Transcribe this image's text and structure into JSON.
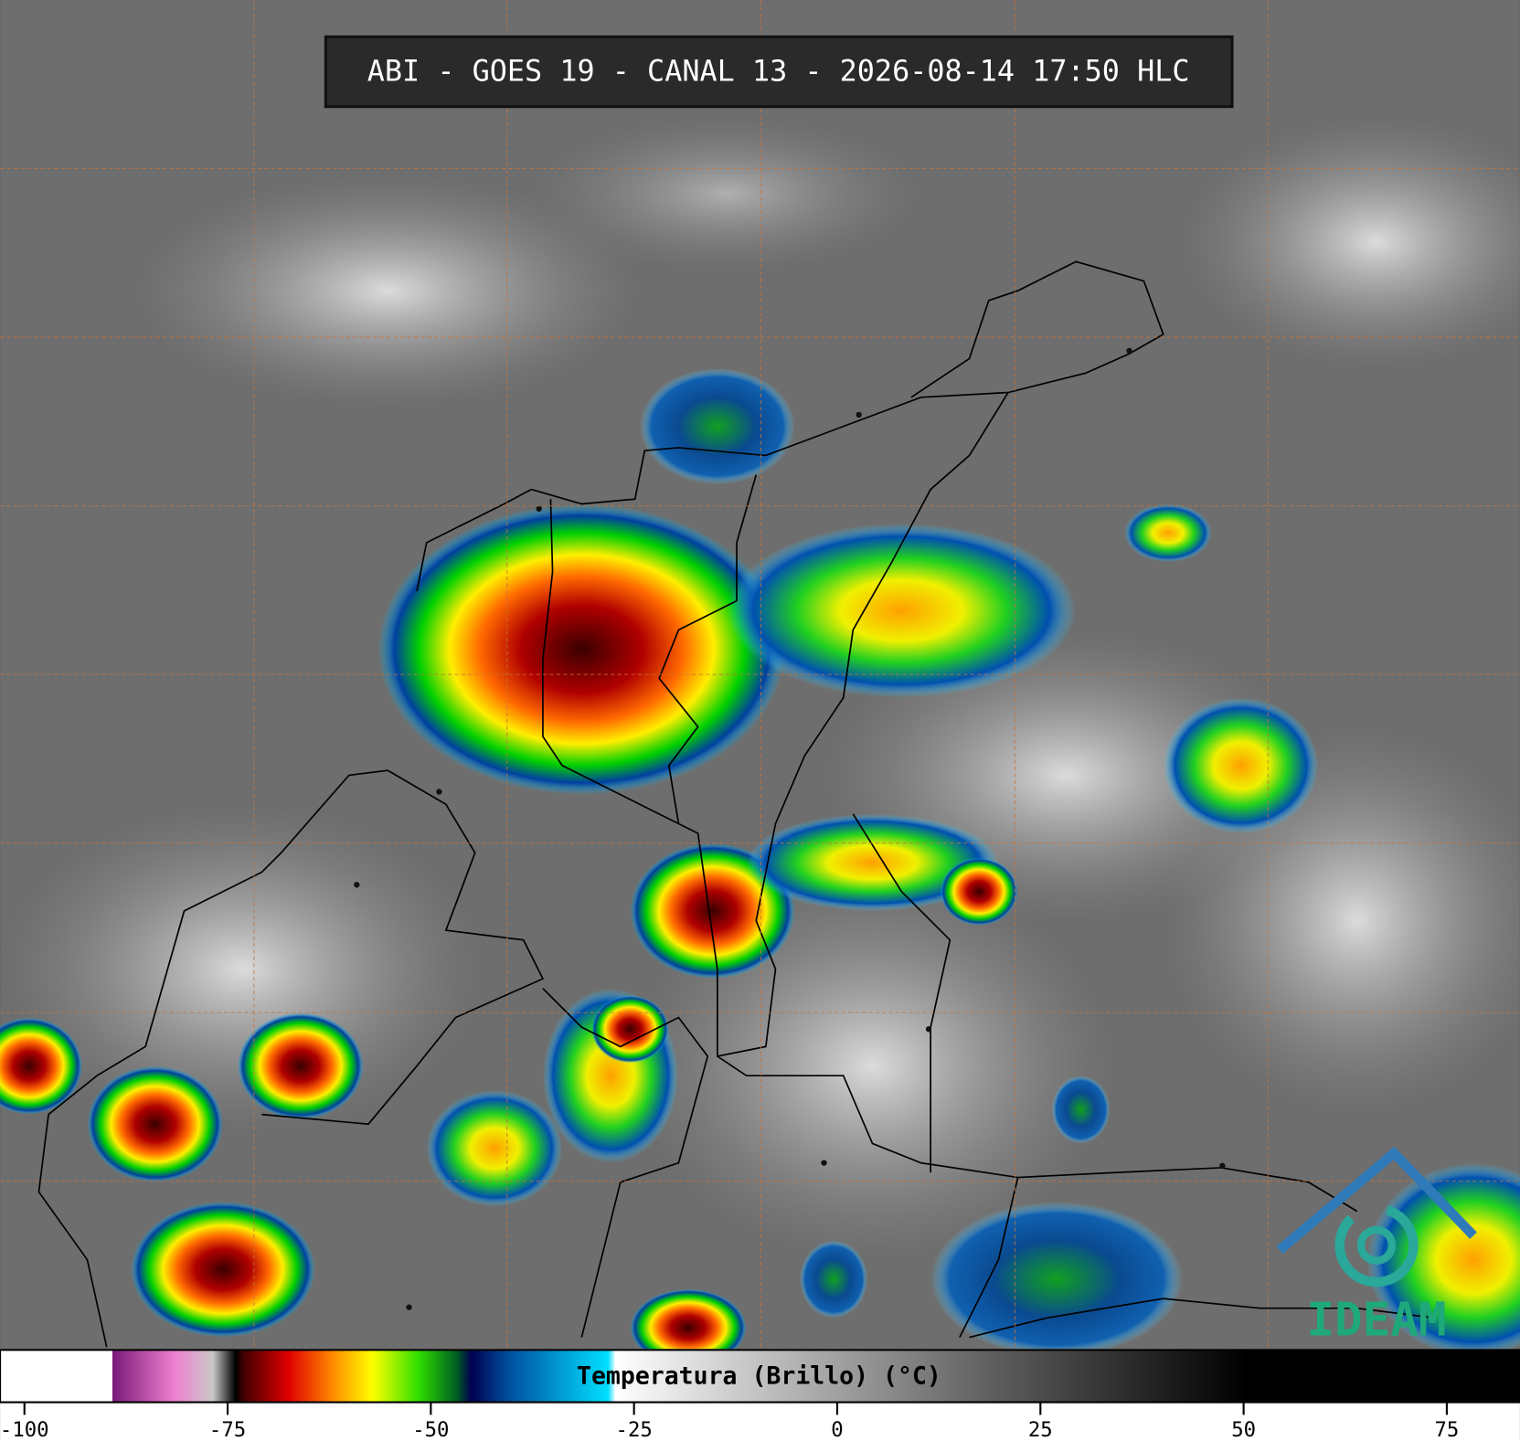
{
  "header": {
    "title": "ABI - GOES 19 - CANAL 13 - 2026-08-14 17:50 HLC"
  },
  "colorbar": {
    "label": "Temperatura (Brillo) (°C)",
    "lim": [
      -103,
      84
    ],
    "ticks": [
      -100,
      -75,
      -50,
      -25,
      0,
      25,
      50,
      75
    ]
  },
  "logo": {
    "text": "IDEAM"
  }
}
